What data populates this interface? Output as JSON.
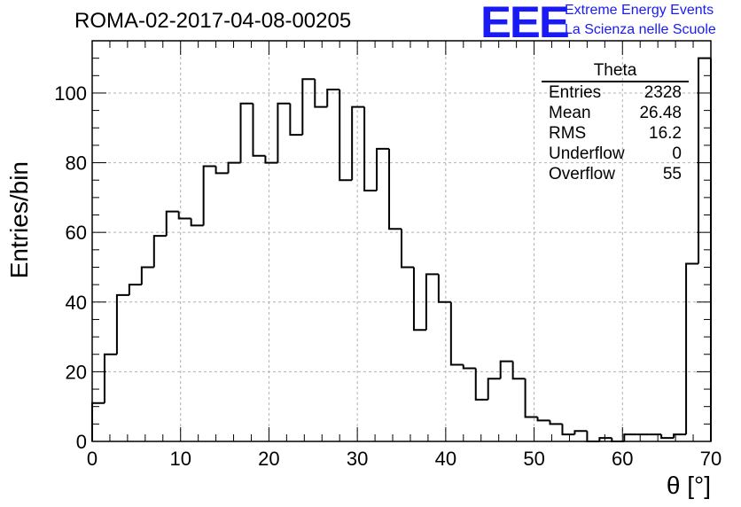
{
  "chart_data": {
    "type": "bar",
    "title": "ROMA-02-2017-04-08-00205",
    "xlabel": "θ [°]",
    "ylabel": "Entries/bin",
    "xlim": [
      0,
      70
    ],
    "ylim": [
      0,
      115
    ],
    "grid": true,
    "bin_width": 1.4,
    "x_ticks": [
      0,
      10,
      20,
      30,
      40,
      50,
      60,
      70
    ],
    "y_ticks": [
      0,
      20,
      40,
      60,
      80,
      100
    ],
    "values": [
      11,
      25,
      42,
      45,
      50,
      59,
      66,
      64,
      62,
      79,
      77,
      80,
      97,
      82,
      80,
      97,
      88,
      104,
      96,
      101,
      75,
      96,
      72,
      84,
      61,
      50,
      32,
      48,
      40,
      22,
      21,
      12,
      18,
      23,
      18,
      7,
      6,
      5,
      2,
      3,
      0,
      1,
      0,
      2,
      2,
      2,
      1,
      2,
      51,
      110
    ]
  },
  "stats_box": {
    "header": "Theta",
    "rows": [
      {
        "label": "Entries",
        "value": "2328"
      },
      {
        "label": "Mean",
        "value": "26.48"
      },
      {
        "label": "RMS",
        "value": "16.2"
      },
      {
        "label": "Underflow",
        "value": "0"
      },
      {
        "label": "Overflow",
        "value": "55"
      }
    ]
  },
  "logo": {
    "mark": "EEE",
    "line1": "Extreme Energy Events",
    "line2": "La Scienza nelle Scuole",
    "color": "#1a1af5"
  }
}
